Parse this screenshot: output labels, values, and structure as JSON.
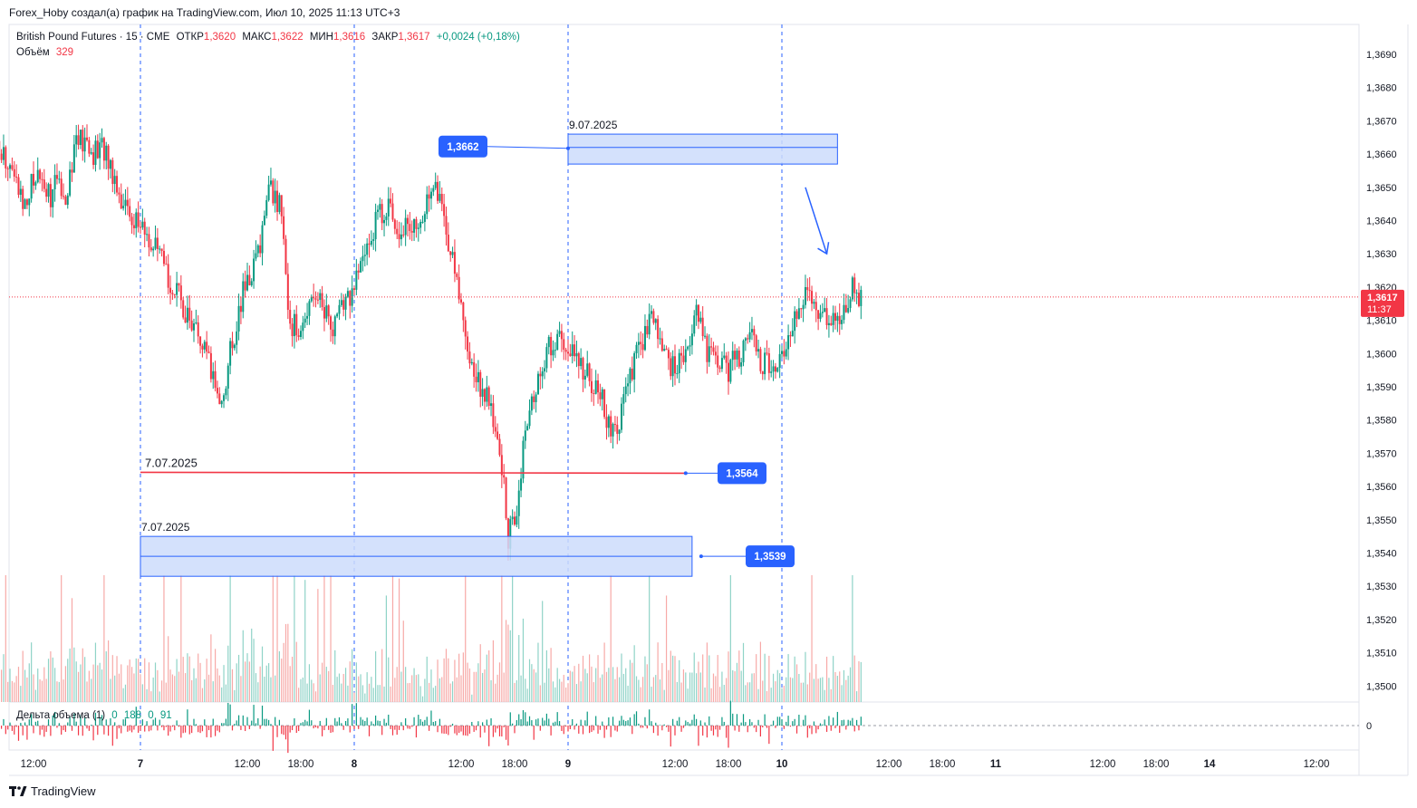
{
  "header": {
    "credit": "Forex_Hoby создал(а) график на TradingView.com, Июл 10, 2025 11:13 UTC+3"
  },
  "legend": {
    "symbol": "British Pound Futures · 15 · CME",
    "open_label": "ОТКР",
    "open_value": "1,3620",
    "high_label": "МАКС",
    "high_value": "1,3622",
    "low_label": "МИН",
    "low_value": "1,3616",
    "close_label": "ЗАКР",
    "close_value": "1,3617",
    "change": "+0,0024 (+0,18%)",
    "volume_label": "Объём",
    "volume_value": "329"
  },
  "delta_legend": {
    "label": "Дельта объема (1)",
    "v1": "0",
    "v2": "188",
    "v3": "0",
    "v4": "91"
  },
  "footer": {
    "brand": "TradingView"
  },
  "colors": {
    "up": "#089981",
    "down": "#f23645",
    "zone_fill": "#cddcfb",
    "zone_stroke": "#2962ff",
    "badge": "#2962ff",
    "price_tag": "#f23645"
  },
  "chart_data": {
    "type": "candlestick",
    "symbol": "British Pound Futures",
    "timeframe": "15",
    "ylim": [
      1.3493,
      1.37
    ],
    "y_ticks": [
      "1,3690",
      "1,3680",
      "1,3670",
      "1,3660",
      "1,3650",
      "1,3640",
      "1,3630",
      "1,3620",
      "1,3610",
      "1,3600",
      "1,3590",
      "1,3580",
      "1,3570",
      "1,3560",
      "1,3550",
      "1,3540",
      "1,3530",
      "1,3520",
      "1,3510",
      "1,3500"
    ],
    "y_tick_values": [
      1.369,
      1.368,
      1.367,
      1.366,
      1.365,
      1.364,
      1.363,
      1.362,
      1.361,
      1.36,
      1.359,
      1.358,
      1.357,
      1.356,
      1.355,
      1.354,
      1.353,
      1.352,
      1.351,
      1.35
    ],
    "x_ticks": [
      {
        "label": "12:00",
        "t": 0.5,
        "bold": false
      },
      {
        "label": "7",
        "t": 1.0,
        "bold": true
      },
      {
        "label": "12:00",
        "t": 1.5,
        "bold": false
      },
      {
        "label": "18:00",
        "t": 1.75,
        "bold": false
      },
      {
        "label": "8",
        "t": 2.0,
        "bold": true
      },
      {
        "label": "12:00",
        "t": 2.5,
        "bold": false
      },
      {
        "label": "18:00",
        "t": 2.75,
        "bold": false
      },
      {
        "label": "9",
        "t": 3.0,
        "bold": true
      },
      {
        "label": "12:00",
        "t": 3.5,
        "bold": false
      },
      {
        "label": "18:00",
        "t": 3.75,
        "bold": false
      },
      {
        "label": "10",
        "t": 4.0,
        "bold": true
      },
      {
        "label": "12:00",
        "t": 4.5,
        "bold": false
      },
      {
        "label": "18:00",
        "t": 4.75,
        "bold": false
      },
      {
        "label": "11",
        "t": 5.0,
        "bold": true
      },
      {
        "label": "12:00",
        "t": 5.5,
        "bold": false
      },
      {
        "label": "18:00",
        "t": 5.75,
        "bold": false
      },
      {
        "label": "14",
        "t": 6.0,
        "bold": true
      },
      {
        "label": "12:00",
        "t": 6.5,
        "bold": false
      }
    ],
    "day_separators": [
      1.0,
      2.0,
      3.0,
      4.0
    ],
    "last_price": 1.3617,
    "last_price_label": "1,3617",
    "countdown": "11:37",
    "close_path": [
      [
        0.0,
        1.366
      ],
      [
        0.05,
        1.3672
      ],
      [
        0.1,
        1.369
      ],
      [
        0.15,
        1.3685
      ],
      [
        0.2,
        1.367
      ],
      [
        0.3,
        1.3665
      ],
      [
        0.4,
        1.3655
      ],
      [
        0.45,
        1.3645
      ],
      [
        0.52,
        1.3655
      ],
      [
        0.58,
        1.3648
      ],
      [
        0.62,
        1.3652
      ],
      [
        0.65,
        1.3648
      ],
      [
        0.7,
        1.3665
      ],
      [
        0.78,
        1.366
      ],
      [
        0.83,
        1.3662
      ],
      [
        0.87,
        1.3655
      ],
      [
        0.92,
        1.3645
      ],
      [
        1.0,
        1.3638
      ],
      [
        1.08,
        1.363
      ],
      [
        1.15,
        1.362
      ],
      [
        1.22,
        1.3612
      ],
      [
        1.3,
        1.36
      ],
      [
        1.38,
        1.3585
      ],
      [
        1.42,
        1.36
      ],
      [
        1.48,
        1.3618
      ],
      [
        1.55,
        1.363
      ],
      [
        1.6,
        1.365
      ],
      [
        1.65,
        1.3645
      ],
      [
        1.7,
        1.361
      ],
      [
        1.75,
        1.3605
      ],
      [
        1.8,
        1.362
      ],
      [
        1.85,
        1.3615
      ],
      [
        1.9,
        1.3608
      ],
      [
        1.95,
        1.3615
      ],
      [
        2.0,
        1.362
      ],
      [
        2.05,
        1.363
      ],
      [
        2.1,
        1.364
      ],
      [
        2.15,
        1.3645
      ],
      [
        2.2,
        1.3638
      ],
      [
        2.25,
        1.364
      ],
      [
        2.3,
        1.3635
      ],
      [
        2.35,
        1.365
      ],
      [
        2.4,
        1.3648
      ],
      [
        2.45,
        1.363
      ],
      [
        2.5,
        1.3615
      ],
      [
        2.55,
        1.3595
      ],
      [
        2.6,
        1.359
      ],
      [
        2.65,
        1.358
      ],
      [
        2.7,
        1.356
      ],
      [
        2.72,
        1.3545
      ],
      [
        2.75,
        1.355
      ],
      [
        2.8,
        1.3575
      ],
      [
        2.85,
        1.359
      ],
      [
        2.9,
        1.36
      ],
      [
        2.95,
        1.3605
      ],
      [
        3.0,
        1.36
      ],
      [
        3.05,
        1.3598
      ],
      [
        3.1,
        1.3592
      ],
      [
        3.15,
        1.3588
      ],
      [
        3.2,
        1.3575
      ],
      [
        3.25,
        1.3582
      ],
      [
        3.3,
        1.3595
      ],
      [
        3.35,
        1.3605
      ],
      [
        3.4,
        1.361
      ],
      [
        3.45,
        1.36
      ],
      [
        3.5,
        1.3595
      ],
      [
        3.55,
        1.36
      ],
      [
        3.6,
        1.3615
      ],
      [
        3.65,
        1.36
      ],
      [
        3.7,
        1.3598
      ],
      [
        3.75,
        1.3595
      ],
      [
        3.8,
        1.36
      ],
      [
        3.85,
        1.3605
      ],
      [
        3.9,
        1.3598
      ],
      [
        3.95,
        1.3595
      ],
      [
        4.0,
        1.36
      ],
      [
        4.05,
        1.361
      ],
      [
        4.1,
        1.3618
      ],
      [
        4.15,
        1.3615
      ],
      [
        4.2,
        1.3612
      ],
      [
        4.25,
        1.361
      ],
      [
        4.3,
        1.3615
      ],
      [
        4.33,
        1.362
      ],
      [
        4.37,
        1.3617
      ]
    ],
    "annotations": [
      {
        "kind": "zone",
        "date_label": "9.07.2025",
        "t1": 3.0,
        "t2": 4.26,
        "top": 1.3666,
        "bottom": 1.3657,
        "mid": 1.3662,
        "badge": "1,3662"
      },
      {
        "kind": "line",
        "date_label": "7.07.2025",
        "t1": 1.0,
        "t2": 3.55,
        "price": 1.3564,
        "badge": "1,3564"
      },
      {
        "kind": "zone",
        "date_label": "7.07.2025",
        "t1": 1.0,
        "t2": 3.58,
        "top": 1.3545,
        "bottom": 1.3533,
        "mid": 1.3539,
        "badge": "1,3539"
      }
    ],
    "arrow": {
      "t1": 4.11,
      "p1": 1.365,
      "t2": 4.21,
      "p2": 1.363
    }
  }
}
